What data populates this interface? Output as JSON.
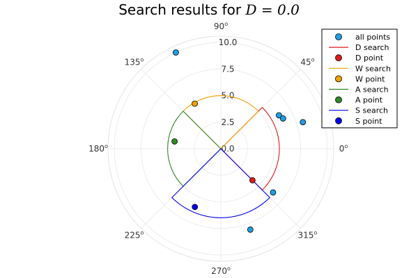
{
  "chart_data": {
    "type": "scatter",
    "projection": "polar",
    "title": "Search results for D = 0.0",
    "title_prefix": "Search results for ",
    "title_math": "D = 0.0",
    "radial_ticks": [
      "0.0",
      "2.5",
      "5.0",
      "7.5",
      "10.0"
    ],
    "radial_tick_values": [
      0,
      2.5,
      5,
      7.5,
      10
    ],
    "r_max": 10.6,
    "angle_ticks": [
      {
        "deg": 0,
        "label": "0"
      },
      {
        "deg": 45,
        "label": "45"
      },
      {
        "deg": 90,
        "label": "90"
      },
      {
        "deg": 135,
        "label": "135"
      },
      {
        "deg": 180,
        "label": "180"
      },
      {
        "deg": 225,
        "label": "225"
      },
      {
        "deg": 270,
        "label": "270"
      },
      {
        "deg": 315,
        "label": "315"
      }
    ],
    "degree_symbol": "o",
    "grid": true,
    "legend_position": "top-right",
    "colors": {
      "all_points": "#1f9ee8",
      "D": "#e31a1c",
      "W": "#f5a000",
      "A": "#2e8b22",
      "S": "#0000ee"
    },
    "legend": [
      {
        "label": "all points",
        "kind": "marker",
        "color": "#1f9ee8"
      },
      {
        "label": "D search",
        "kind": "line",
        "color": "#e31a1c"
      },
      {
        "label": "D point",
        "kind": "marker",
        "color": "#e31a1c"
      },
      {
        "label": "W search",
        "kind": "line",
        "color": "#f5a000"
      },
      {
        "label": "W point",
        "kind": "marker",
        "color": "#f5a000"
      },
      {
        "label": "A search",
        "kind": "line",
        "color": "#2e8b22"
      },
      {
        "label": "A point",
        "kind": "marker",
        "color": "#2e8b22"
      },
      {
        "label": "S search",
        "kind": "line",
        "color": "#0000ee"
      },
      {
        "label": "S point",
        "kind": "marker",
        "color": "#0000ee"
      }
    ],
    "all_points": [
      {
        "theta_deg": 115,
        "r": 10.0
      },
      {
        "theta_deg": 30,
        "r": 6.3
      },
      {
        "theta_deg": 26,
        "r": 6.5
      },
      {
        "theta_deg": 18,
        "r": 8.1
      },
      {
        "theta_deg": 320,
        "r": 6.4
      },
      {
        "theta_deg": 290,
        "r": 8.1
      }
    ],
    "searches": [
      {
        "name": "D search",
        "color": "#e31a1c",
        "theta_start": 315,
        "theta_end": 405,
        "r": 5.5
      },
      {
        "name": "W search",
        "color": "#f5a000",
        "theta_start": 45,
        "theta_end": 135,
        "r": 5.0
      },
      {
        "name": "A search",
        "color": "#2e8b22",
        "theta_start": 135,
        "theta_end": 225,
        "r": 5.0
      },
      {
        "name": "S search",
        "color": "#0000ee",
        "theta_start": 225,
        "theta_end": 315,
        "r": 6.5
      }
    ],
    "search_points": [
      {
        "name": "D point",
        "color": "#e31a1c",
        "theta_deg": 315,
        "r": 4.2
      },
      {
        "name": "W point",
        "color": "#f5a000",
        "theta_deg": 120,
        "r": 4.9
      },
      {
        "name": "A point",
        "color": "#2e8b22",
        "theta_deg": 171,
        "r": 4.4
      },
      {
        "name": "S point",
        "color": "#0000ee",
        "theta_deg": 246,
        "r": 6.0
      }
    ]
  }
}
